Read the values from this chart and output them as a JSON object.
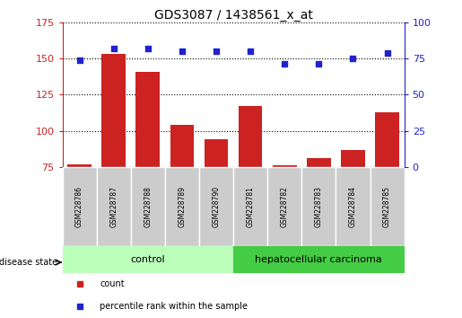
{
  "title": "GDS3087 / 1438561_x_at",
  "samples": [
    "GSM228786",
    "GSM228787",
    "GSM228788",
    "GSM228789",
    "GSM228790",
    "GSM228781",
    "GSM228782",
    "GSM228783",
    "GSM228784",
    "GSM228785"
  ],
  "counts": [
    77,
    153,
    141,
    104,
    94,
    117,
    76,
    81,
    87,
    113
  ],
  "percentiles": [
    74,
    82,
    82,
    80,
    80,
    80,
    71,
    71,
    75,
    79
  ],
  "ylim_left": [
    75,
    175
  ],
  "ylim_right": [
    0,
    100
  ],
  "yticks_left": [
    75,
    100,
    125,
    150,
    175
  ],
  "yticks_right": [
    0,
    25,
    50,
    75,
    100
  ],
  "bar_color": "#cc2222",
  "dot_color": "#2222cc",
  "control_samples": 5,
  "control_label": "control",
  "disease_label": "hepatocellular carcinoma",
  "disease_state_label": "disease state",
  "legend_count": "count",
  "legend_percentile": "percentile rank within the sample",
  "control_bg": "#bbffbb",
  "disease_bg": "#44cc44",
  "tick_bg": "#cccccc",
  "border_color": "#888888"
}
